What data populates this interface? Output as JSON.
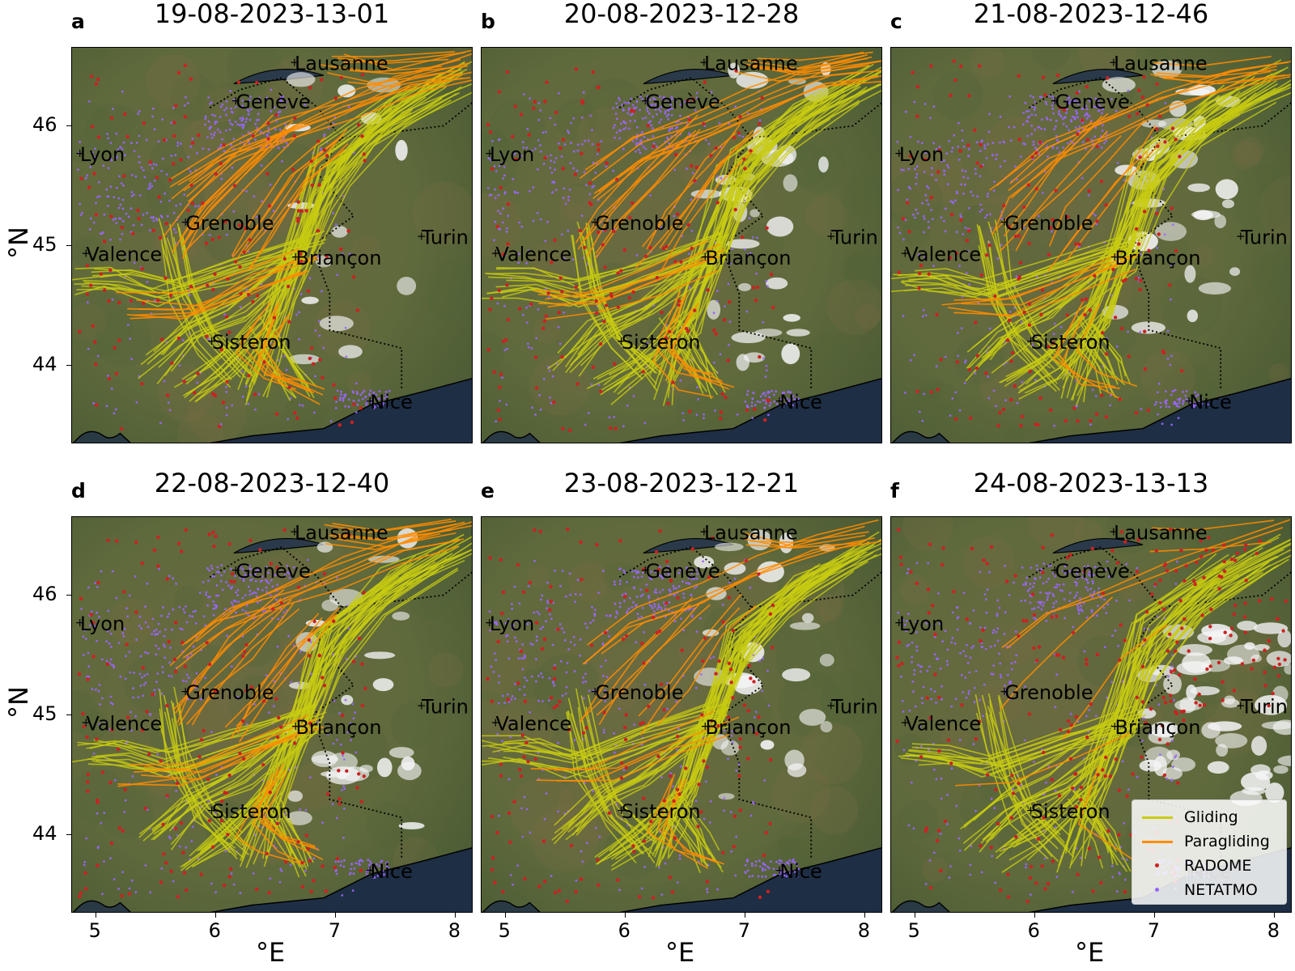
{
  "panels": [
    {
      "letter": "a",
      "title": "19-08-2023-13-01",
      "clouds": 0.25,
      "para": 0.9
    },
    {
      "letter": "b",
      "title": "20-08-2023-12-28",
      "clouds": 0.55,
      "para": 0.75
    },
    {
      "letter": "c",
      "title": "21-08-2023-12-46",
      "clouds": 0.6,
      "para": 0.55
    },
    {
      "letter": "d",
      "title": "22-08-2023-12-40",
      "clouds": 0.5,
      "para": 0.7
    },
    {
      "letter": "e",
      "title": "23-08-2023-12-21",
      "clouds": 0.45,
      "para": 0.45
    },
    {
      "letter": "f",
      "title": "24-08-2023-13-13",
      "clouds": 1.0,
      "para": 0.15
    }
  ],
  "map_extent": {
    "lon": [
      4.8,
      8.15
    ],
    "lat": [
      43.35,
      46.65
    ]
  },
  "cities": [
    {
      "name": "Lausanne",
      "lon": 6.63,
      "lat": 46.52
    },
    {
      "name": "Genève",
      "lon": 6.14,
      "lat": 46.2
    },
    {
      "name": "Lyon",
      "lon": 4.84,
      "lat": 45.76
    },
    {
      "name": "Grenoble",
      "lon": 5.72,
      "lat": 45.19
    },
    {
      "name": "Turin",
      "lon": 7.69,
      "lat": 45.07
    },
    {
      "name": "Valence",
      "lon": 4.89,
      "lat": 44.93
    },
    {
      "name": "Briançon",
      "lon": 6.64,
      "lat": 44.9
    },
    {
      "name": "Sisteron",
      "lon": 5.94,
      "lat": 44.2
    },
    {
      "name": "Nice",
      "lon": 7.26,
      "lat": 43.7
    }
  ],
  "axes": {
    "xlabel": "°E",
    "ylabel": "°N",
    "xticks": [
      "5",
      "6",
      "7",
      "8"
    ],
    "xtick_values": [
      5,
      6,
      7,
      8
    ],
    "yticks": [
      "44",
      "45",
      "46"
    ],
    "ytick_values": [
      44,
      45,
      46
    ]
  },
  "legend": {
    "items": [
      {
        "label": "Gliding",
        "kind": "line",
        "color": "#c8cc10"
      },
      {
        "label": "Paragliding",
        "kind": "line",
        "color": "#ff8c00"
      },
      {
        "label": "RADOME",
        "kind": "dot",
        "color": "#cc2222"
      },
      {
        "label": "NETATMO",
        "kind": "dot",
        "color": "#9966ff"
      }
    ]
  },
  "colors": {
    "terrain": "#5f6a3c",
    "sea": "#1e2e44",
    "cloud": "#f4f4f6",
    "gliding": "#c8cc10",
    "paragliding": "#ff8c00",
    "radome": "#cc2222",
    "netatmo": "#9966ff"
  }
}
